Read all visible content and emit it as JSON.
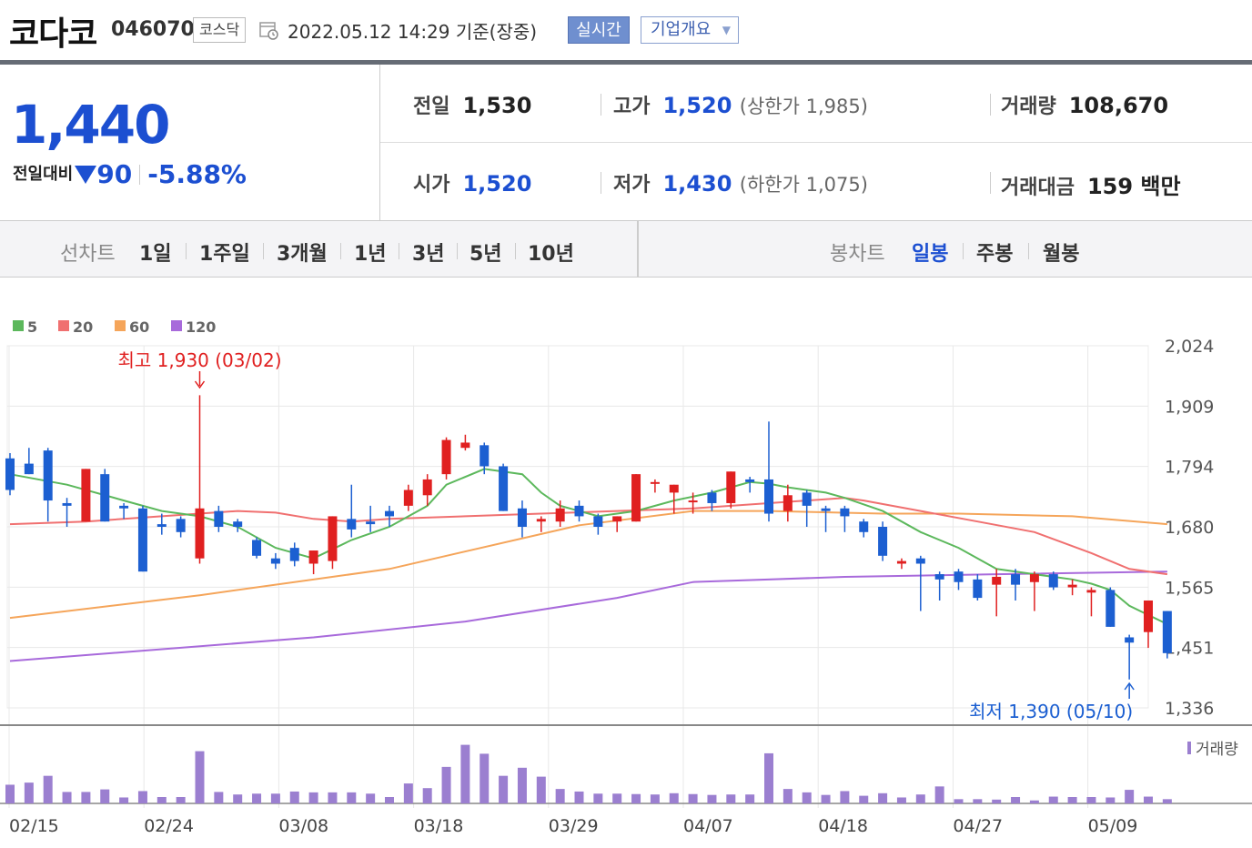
{
  "header": {
    "corp_name": "코다코",
    "corp_code": "046070",
    "market": "코스닥",
    "date": "2022.05.12 14:29 기준(장중)",
    "realtime_label": "실시간",
    "company_info_label": "기업개요"
  },
  "price": {
    "current": "1,440",
    "diff_label": "전일대비",
    "diff_value": "90",
    "diff_rate": "-5.88%",
    "direction": "down"
  },
  "stats": {
    "prev_label": "전일",
    "prev": "1,530",
    "high_label": "고가",
    "high": "1,520",
    "upper_limit": "(상한가 1,985)",
    "volume_label": "거래량",
    "volume": "108,670",
    "open_label": "시가",
    "open": "1,520",
    "low_label": "저가",
    "low": "1,430",
    "lower_limit": "(하한가 1,075)",
    "amount_label": "거래대금",
    "amount": "159 백만"
  },
  "tabs": {
    "line_label": "선차트",
    "line_items": [
      "1일",
      "1주일",
      "3개월",
      "1년",
      "3년",
      "5년",
      "10년"
    ],
    "candle_label": "봉차트",
    "candle_items": [
      "일봉",
      "주봉",
      "월봉"
    ],
    "candle_selected": "일봉"
  },
  "colors": {
    "up": "#e02020",
    "down": "#1c5fd1",
    "ma5": "#5cb85c",
    "ma20": "#f07070",
    "ma60": "#f5a55a",
    "ma120": "#a86adb",
    "volume": "#9b7fd0"
  },
  "chart_data": {
    "type": "candlestick",
    "legend": [
      "5",
      "20",
      "60",
      "120"
    ],
    "y_ticks": [
      "2,024",
      "1,909",
      "1,794",
      "1,680",
      "1,565",
      "1,451",
      "1,336"
    ],
    "ylim": [
      1336,
      2024
    ],
    "x_ticks": [
      "02/15",
      "02/24",
      "03/08",
      "03/18",
      "03/29",
      "04/07",
      "04/18",
      "04/27",
      "05/09"
    ],
    "high_annotation": "최고 1,930 (03/02)",
    "low_annotation": "최저 1,390 (05/10)",
    "volume_label": "거래량",
    "candles": [
      {
        "o": 1810,
        "h": 1820,
        "l": 1740,
        "c": 1750
      },
      {
        "o": 1800,
        "h": 1830,
        "l": 1780,
        "c": 1780
      },
      {
        "o": 1825,
        "h": 1830,
        "l": 1690,
        "c": 1730
      },
      {
        "o": 1725,
        "h": 1735,
        "l": 1680,
        "c": 1720
      },
      {
        "o": 1690,
        "h": 1790,
        "l": 1690,
        "c": 1790
      },
      {
        "o": 1780,
        "h": 1790,
        "l": 1690,
        "c": 1690
      },
      {
        "o": 1720,
        "h": 1725,
        "l": 1695,
        "c": 1715
      },
      {
        "o": 1715,
        "h": 1720,
        "l": 1595,
        "c": 1595
      },
      {
        "o": 1685,
        "h": 1705,
        "l": 1665,
        "c": 1680
      },
      {
        "o": 1695,
        "h": 1700,
        "l": 1660,
        "c": 1670
      },
      {
        "o": 1620,
        "h": 1930,
        "l": 1610,
        "c": 1715
      },
      {
        "o": 1710,
        "h": 1720,
        "l": 1670,
        "c": 1680
      },
      {
        "o": 1690,
        "h": 1695,
        "l": 1670,
        "c": 1680
      },
      {
        "o": 1655,
        "h": 1660,
        "l": 1620,
        "c": 1625
      },
      {
        "o": 1620,
        "h": 1630,
        "l": 1600,
        "c": 1610
      },
      {
        "o": 1640,
        "h": 1650,
        "l": 1605,
        "c": 1615
      },
      {
        "o": 1610,
        "h": 1635,
        "l": 1590,
        "c": 1635
      },
      {
        "o": 1615,
        "h": 1700,
        "l": 1600,
        "c": 1700
      },
      {
        "o": 1695,
        "h": 1760,
        "l": 1660,
        "c": 1675
      },
      {
        "o": 1690,
        "h": 1720,
        "l": 1670,
        "c": 1685
      },
      {
        "o": 1710,
        "h": 1720,
        "l": 1680,
        "c": 1700
      },
      {
        "o": 1720,
        "h": 1760,
        "l": 1710,
        "c": 1750
      },
      {
        "o": 1740,
        "h": 1780,
        "l": 1720,
        "c": 1770
      },
      {
        "o": 1780,
        "h": 1850,
        "l": 1770,
        "c": 1845
      },
      {
        "o": 1830,
        "h": 1855,
        "l": 1825,
        "c": 1840
      },
      {
        "o": 1835,
        "h": 1840,
        "l": 1780,
        "c": 1795
      },
      {
        "o": 1795,
        "h": 1800,
        "l": 1710,
        "c": 1710
      },
      {
        "o": 1715,
        "h": 1730,
        "l": 1660,
        "c": 1680
      },
      {
        "o": 1690,
        "h": 1700,
        "l": 1670,
        "c": 1695
      },
      {
        "o": 1690,
        "h": 1730,
        "l": 1680,
        "c": 1715
      },
      {
        "o": 1720,
        "h": 1730,
        "l": 1690,
        "c": 1700
      },
      {
        "o": 1700,
        "h": 1705,
        "l": 1665,
        "c": 1680
      },
      {
        "o": 1690,
        "h": 1700,
        "l": 1670,
        "c": 1700
      },
      {
        "o": 1690,
        "h": 1780,
        "l": 1690,
        "c": 1780
      },
      {
        "o": 1765,
        "h": 1770,
        "l": 1745,
        "c": 1765
      },
      {
        "o": 1745,
        "h": 1760,
        "l": 1705,
        "c": 1760
      },
      {
        "o": 1730,
        "h": 1745,
        "l": 1705,
        "c": 1730
      },
      {
        "o": 1745,
        "h": 1750,
        "l": 1710,
        "c": 1725
      },
      {
        "o": 1725,
        "h": 1785,
        "l": 1715,
        "c": 1785
      },
      {
        "o": 1770,
        "h": 1775,
        "l": 1745,
        "c": 1765
      },
      {
        "o": 1770,
        "h": 1880,
        "l": 1690,
        "c": 1705
      },
      {
        "o": 1710,
        "h": 1760,
        "l": 1690,
        "c": 1740
      },
      {
        "o": 1745,
        "h": 1750,
        "l": 1680,
        "c": 1720
      },
      {
        "o": 1715,
        "h": 1720,
        "l": 1670,
        "c": 1710
      },
      {
        "o": 1715,
        "h": 1720,
        "l": 1670,
        "c": 1700
      },
      {
        "o": 1690,
        "h": 1695,
        "l": 1660,
        "c": 1670
      },
      {
        "o": 1680,
        "h": 1690,
        "l": 1615,
        "c": 1625
      },
      {
        "o": 1610,
        "h": 1620,
        "l": 1600,
        "c": 1615
      },
      {
        "o": 1620,
        "h": 1625,
        "l": 1520,
        "c": 1610
      },
      {
        "o": 1590,
        "h": 1595,
        "l": 1540,
        "c": 1580
      },
      {
        "o": 1595,
        "h": 1600,
        "l": 1560,
        "c": 1575
      },
      {
        "o": 1580,
        "h": 1590,
        "l": 1540,
        "c": 1545
      },
      {
        "o": 1570,
        "h": 1600,
        "l": 1510,
        "c": 1585
      },
      {
        "o": 1590,
        "h": 1600,
        "l": 1540,
        "c": 1570
      },
      {
        "o": 1575,
        "h": 1595,
        "l": 1520,
        "c": 1590
      },
      {
        "o": 1590,
        "h": 1595,
        "l": 1560,
        "c": 1565
      },
      {
        "o": 1565,
        "h": 1580,
        "l": 1550,
        "c": 1570
      },
      {
        "o": 1555,
        "h": 1565,
        "l": 1510,
        "c": 1560
      },
      {
        "o": 1560,
        "h": 1565,
        "l": 1490,
        "c": 1490
      },
      {
        "o": 1470,
        "h": 1475,
        "l": 1390,
        "c": 1460
      },
      {
        "o": 1480,
        "h": 1540,
        "l": 1450,
        "c": 1540
      },
      {
        "o": 1520,
        "h": 1520,
        "l": 1430,
        "c": 1440
      }
    ],
    "ma5": [
      [
        0,
        1780
      ],
      [
        3,
        1760
      ],
      [
        6,
        1730
      ],
      [
        8,
        1710
      ],
      [
        10,
        1700
      ],
      [
        12,
        1680
      ],
      [
        14,
        1640
      ],
      [
        16,
        1620
      ],
      [
        18,
        1655
      ],
      [
        20,
        1680
      ],
      [
        22,
        1720
      ],
      [
        23,
        1760
      ],
      [
        25,
        1790
      ],
      [
        27,
        1780
      ],
      [
        28,
        1745
      ],
      [
        29,
        1720
      ],
      [
        31,
        1700
      ],
      [
        33,
        1710
      ],
      [
        35,
        1730
      ],
      [
        37,
        1745
      ],
      [
        38,
        1755
      ],
      [
        39,
        1765
      ],
      [
        40,
        1762
      ],
      [
        41,
        1755
      ],
      [
        43,
        1745
      ],
      [
        44,
        1735
      ],
      [
        46,
        1710
      ],
      [
        48,
        1670
      ],
      [
        50,
        1640
      ],
      [
        52,
        1600
      ],
      [
        54,
        1590
      ],
      [
        56,
        1580
      ],
      [
        57,
        1572
      ],
      [
        58,
        1560
      ],
      [
        59,
        1530
      ],
      [
        61,
        1495
      ]
    ],
    "ma20": [
      [
        0,
        1685
      ],
      [
        4,
        1690
      ],
      [
        8,
        1700
      ],
      [
        12,
        1710
      ],
      [
        14,
        1707
      ],
      [
        16,
        1695
      ],
      [
        18,
        1690
      ],
      [
        20,
        1695
      ],
      [
        24,
        1700
      ],
      [
        28,
        1705
      ],
      [
        32,
        1710
      ],
      [
        36,
        1715
      ],
      [
        40,
        1725
      ],
      [
        44,
        1735
      ],
      [
        45,
        1730
      ],
      [
        48,
        1710
      ],
      [
        51,
        1690
      ],
      [
        54,
        1670
      ],
      [
        57,
        1630
      ],
      [
        59,
        1600
      ],
      [
        61,
        1590
      ]
    ],
    "ma60": [
      [
        0,
        1507
      ],
      [
        10,
        1550
      ],
      [
        20,
        1600
      ],
      [
        30,
        1683
      ],
      [
        36,
        1710
      ],
      [
        40,
        1710
      ],
      [
        46,
        1705
      ],
      [
        50,
        1705
      ],
      [
        56,
        1700
      ],
      [
        61,
        1685
      ]
    ],
    "ma120": [
      [
        0,
        1425
      ],
      [
        16,
        1470
      ],
      [
        24,
        1500
      ],
      [
        32,
        1545
      ],
      [
        36,
        1575
      ],
      [
        44,
        1585
      ],
      [
        52,
        1590
      ],
      [
        61,
        1595
      ]
    ],
    "volumes": [
      4.4,
      4.9,
      6.5,
      2.7,
      2.7,
      3.3,
      1.4,
      2.9,
      1.5,
      1.5,
      12.3,
      2.7,
      2.1,
      2.3,
      2.3,
      2.8,
      2.6,
      2.6,
      2.6,
      2.3,
      1.5,
      4.7,
      3.6,
      8.6,
      13.8,
      11.7,
      6.5,
      8.4,
      6.3,
      3.4,
      2.8,
      2.3,
      2.3,
      2.2,
      2.1,
      2.4,
      2.2,
      2.0,
      2.1,
      2.1,
      11.8,
      3.4,
      2.6,
      2.0,
      2.9,
      1.8,
      2.4,
      1.4,
      2.1,
      4.0,
      1.0,
      1.0,
      0.9,
      1.5,
      0.7,
      1.6,
      1.5,
      1.5,
      1.4,
      3.2,
      1.6,
      1.0
    ],
    "volume_max": 15
  }
}
